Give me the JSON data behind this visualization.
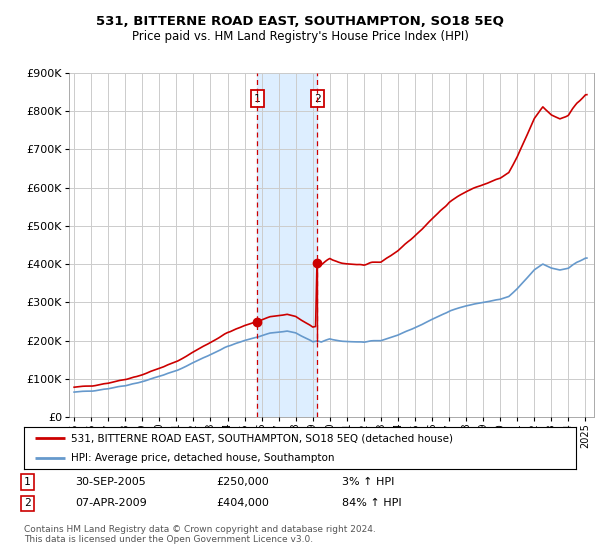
{
  "title": "531, BITTERNE ROAD EAST, SOUTHAMPTON, SO18 5EQ",
  "subtitle": "Price paid vs. HM Land Registry's House Price Index (HPI)",
  "legend_line1": "531, BITTERNE ROAD EAST, SOUTHAMPTON, SO18 5EQ (detached house)",
  "legend_line2": "HPI: Average price, detached house, Southampton",
  "footnote": "Contains HM Land Registry data © Crown copyright and database right 2024.\nThis data is licensed under the Open Government Licence v3.0.",
  "transaction1_date": "30-SEP-2005",
  "transaction1_price": "£250,000",
  "transaction1_hpi": "3% ↑ HPI",
  "transaction2_date": "07-APR-2009",
  "transaction2_price": "£404,000",
  "transaction2_hpi": "84% ↑ HPI",
  "marker1_x": 2005.75,
  "marker2_x": 2009.27,
  "marker1_y": 250000,
  "marker2_y": 404000,
  "ylim": [
    0,
    900000
  ],
  "yticks": [
    0,
    100000,
    200000,
    300000,
    400000,
    500000,
    600000,
    700000,
    800000,
    900000
  ],
  "ytick_labels": [
    "£0",
    "£100K",
    "£200K",
    "£300K",
    "£400K",
    "£500K",
    "£600K",
    "£700K",
    "£800K",
    "£900K"
  ],
  "xlim": [
    1994.7,
    2025.5
  ],
  "red_color": "#cc0000",
  "blue_color": "#6699cc",
  "shaded_color": "#ddeeff",
  "grid_color": "#cccccc"
}
